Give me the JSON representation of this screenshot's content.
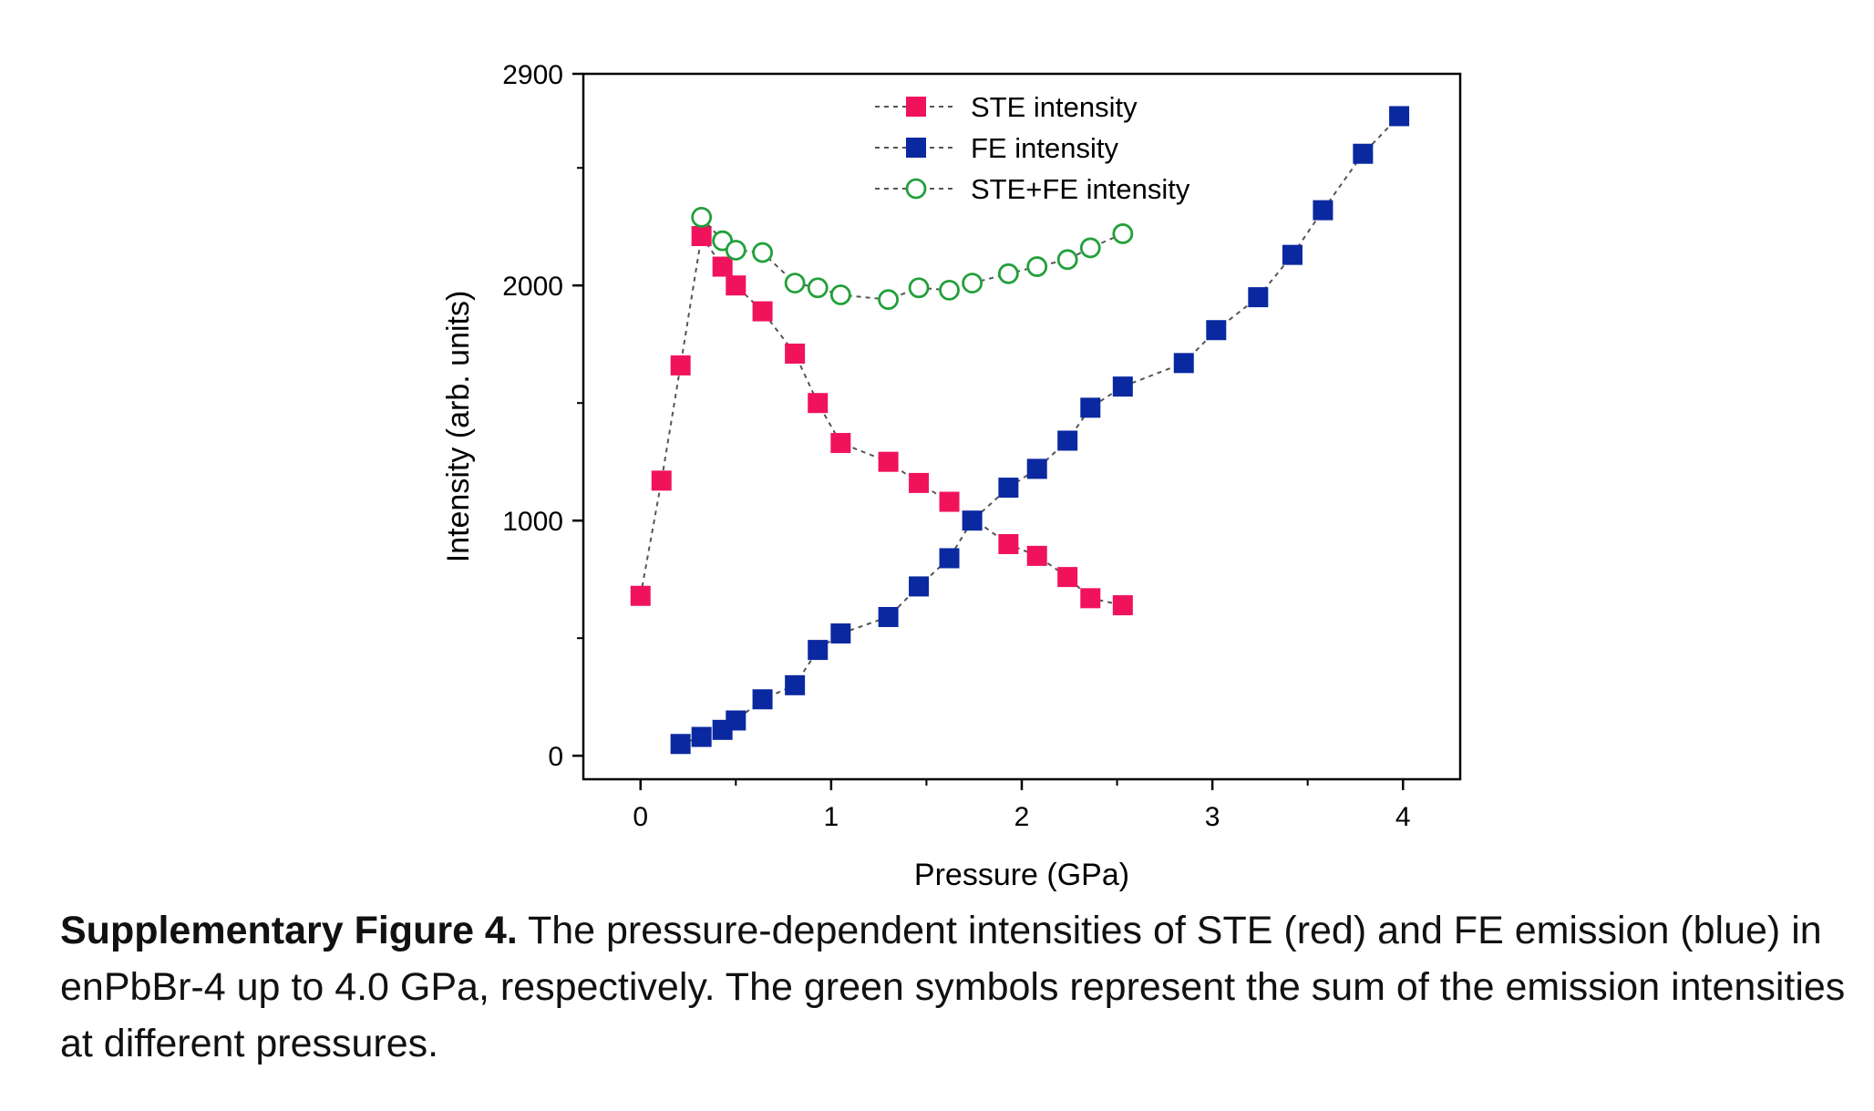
{
  "chart_data": {
    "type": "scatter",
    "title": "",
    "xlabel": "Pressure (GPa)",
    "ylabel": "Intensity (arb. units)",
    "xlim": [
      -0.3,
      4.3
    ],
    "ylim": [
      -100,
      2900
    ],
    "x_ticks": [
      0,
      1,
      2,
      3,
      4
    ],
    "y_ticks": [
      0,
      1000,
      2000,
      2900
    ],
    "legend_position": "top-center",
    "grid": false,
    "series": [
      {
        "name": "STE intensity",
        "marker": "filled-square",
        "color": "#F0135C",
        "x": [
          0.0,
          0.11,
          0.21,
          0.32,
          0.43,
          0.5,
          0.64,
          0.81,
          0.93,
          1.05,
          1.3,
          1.46,
          1.62,
          1.93,
          2.08,
          2.24,
          2.36,
          2.53
        ],
        "y": [
          680,
          1170,
          1660,
          2210,
          2080,
          2000,
          1890,
          1710,
          1500,
          1330,
          1250,
          1160,
          1080,
          900,
          850,
          760,
          670,
          640
        ]
      },
      {
        "name": "FE intensity",
        "marker": "filled-square",
        "color": "#0A28A0",
        "x": [
          0.21,
          0.32,
          0.43,
          0.5,
          0.64,
          0.81,
          0.93,
          1.05,
          1.3,
          1.46,
          1.62,
          1.74,
          1.93,
          2.08,
          2.24,
          2.36,
          2.53,
          2.85,
          3.02,
          3.24,
          3.42,
          3.58,
          3.79,
          3.98
        ],
        "y": [
          50,
          80,
          110,
          150,
          240,
          300,
          450,
          520,
          590,
          720,
          840,
          1000,
          1140,
          1220,
          1340,
          1480,
          1570,
          1670,
          1810,
          1950,
          2130,
          2320,
          2560,
          2720
        ]
      },
      {
        "name": "STE+FE intensity",
        "marker": "open-circle",
        "color": "#22A03A",
        "x": [
          0.32,
          0.43,
          0.5,
          0.64,
          0.81,
          0.93,
          1.05,
          1.3,
          1.46,
          1.62,
          1.74,
          1.93,
          2.08,
          2.24,
          2.36,
          2.53
        ],
        "y": [
          2290,
          2190,
          2150,
          2140,
          2010,
          1990,
          1960,
          1940,
          1990,
          1980,
          2010,
          2050,
          2080,
          2110,
          2160,
          2220
        ]
      }
    ]
  },
  "caption": {
    "label": "Supplementary Figure 4.",
    "text": " The pressure-dependent intensities of STE (red) and FE emission (blue) in enPbBr-4 up to 4.0 GPa, respectively. The green symbols represent the sum of the emission intensities at different pressures."
  },
  "colors": {
    "axis": "#000000",
    "connector": "#555555"
  }
}
